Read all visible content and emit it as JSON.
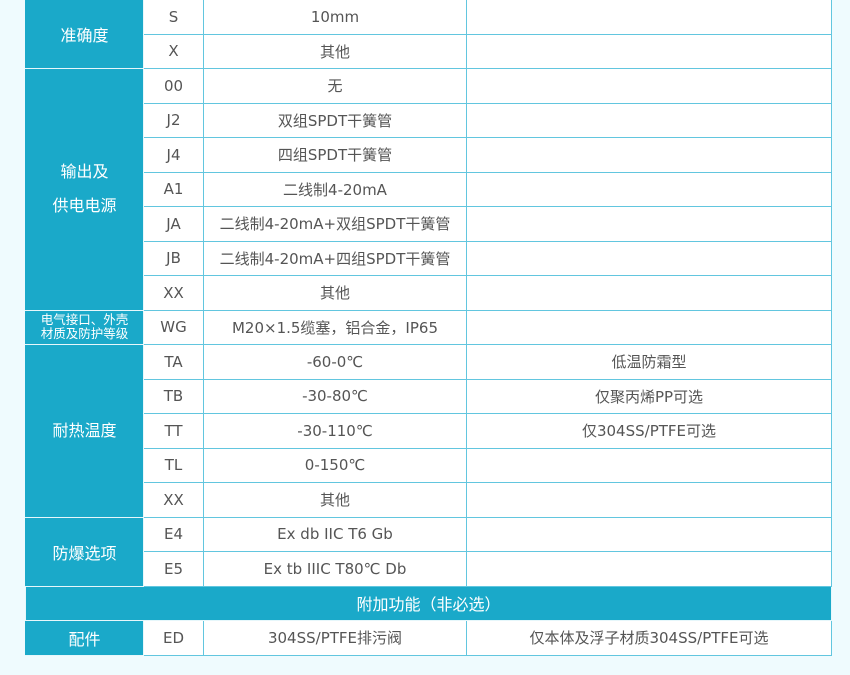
{
  "sections": [
    {
      "category": "准确度",
      "rows": [
        {
          "code": "S",
          "desc": "10mm",
          "note": ""
        },
        {
          "code": "X",
          "desc": "其他",
          "note": ""
        }
      ]
    },
    {
      "category": "输出及\n供电电源",
      "rows": [
        {
          "code": "00",
          "desc": "无",
          "note": ""
        },
        {
          "code": "J2",
          "desc": "双组SPDT干簧管",
          "note": ""
        },
        {
          "code": "J4",
          "desc": "四组SPDT干簧管",
          "note": ""
        },
        {
          "code": "A1",
          "desc": "二线制4-20mA",
          "note": ""
        },
        {
          "code": "JA",
          "desc": "二线制4-20mA+双组SPDT干簧管",
          "note": ""
        },
        {
          "code": "JB",
          "desc": "二线制4-20mA+四组SPDT干簧管",
          "note": ""
        },
        {
          "code": "XX",
          "desc": "其他",
          "note": ""
        }
      ]
    },
    {
      "category": "电气接口、外壳\n材质及防护等级",
      "small": true,
      "rows": [
        {
          "code": "WG",
          "desc": "M20×1.5缆塞，铝合金，IP65",
          "note": ""
        }
      ]
    },
    {
      "category": "耐热温度",
      "rows": [
        {
          "code": "TA",
          "desc": "-60-0℃",
          "note": "低温防霜型"
        },
        {
          "code": "TB",
          "desc": "-30-80℃",
          "note": "仅聚丙烯PP可选"
        },
        {
          "code": "TT",
          "desc": "-30-110℃",
          "note": "仅304SS/PTFE可选"
        },
        {
          "code": "TL",
          "desc": "0-150℃",
          "note": ""
        },
        {
          "code": "XX",
          "desc": "其他",
          "note": ""
        }
      ]
    },
    {
      "category": "防爆选项",
      "rows": [
        {
          "code": "E4",
          "desc": "Ex db IIC T6 Gb",
          "note": ""
        },
        {
          "code": "E5",
          "desc": "Ex tb IIIC T80℃ Db",
          "note": ""
        }
      ]
    }
  ],
  "additional_header": "附加功能（非必选）",
  "accessories": {
    "category": "配件",
    "code": "ED",
    "desc": "304SS/PTFE排污阀",
    "note": "仅本体及浮子材质304SS/PTFE可选"
  },
  "colors": {
    "header_bg": "#1aa9c9",
    "border": "#62c6df",
    "page_bg": "#effbfe"
  }
}
